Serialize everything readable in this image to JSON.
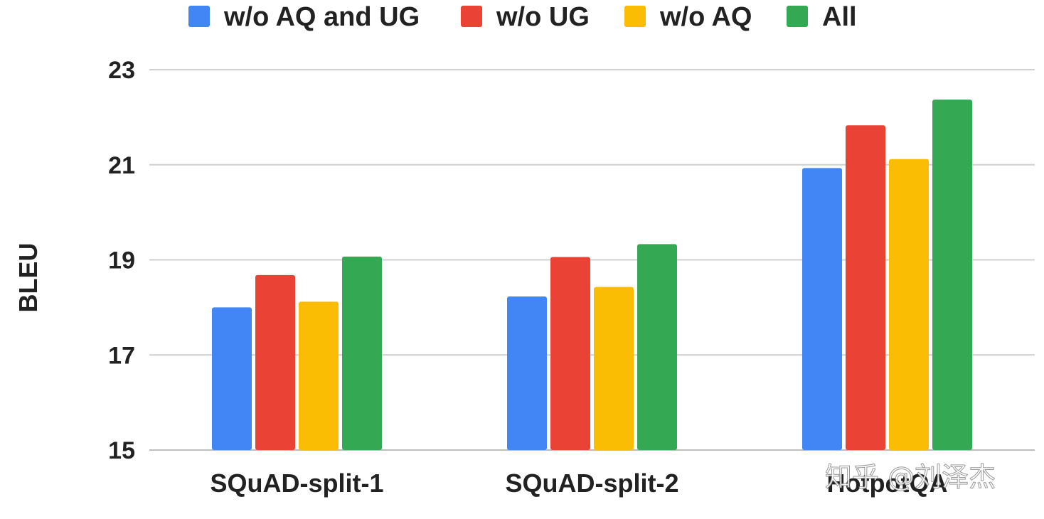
{
  "chart_data": {
    "type": "bar",
    "categories": [
      "SQuAD-split-1",
      "SQuAD-split-2",
      "HotpotQA"
    ],
    "series": [
      {
        "name": "w/o AQ and UG",
        "color": "#4285F4",
        "values": [
          18.0,
          18.23,
          20.93
        ]
      },
      {
        "name": "w/o UG",
        "color": "#EA4335",
        "values": [
          18.68,
          19.06,
          21.83
        ]
      },
      {
        "name": "w/o AQ",
        "color": "#FBBC04",
        "values": [
          18.12,
          18.43,
          21.12
        ]
      },
      {
        "name": "All",
        "color": "#34A853",
        "values": [
          19.07,
          19.33,
          22.37
        ]
      }
    ],
    "ylabel": "BLEU",
    "xlabel": "",
    "ylim": [
      15,
      23
    ],
    "yticks": [
      15,
      17,
      19,
      21,
      23
    ],
    "grid": true,
    "legend_position": "top"
  },
  "watermark": "知乎 @刘泽杰"
}
